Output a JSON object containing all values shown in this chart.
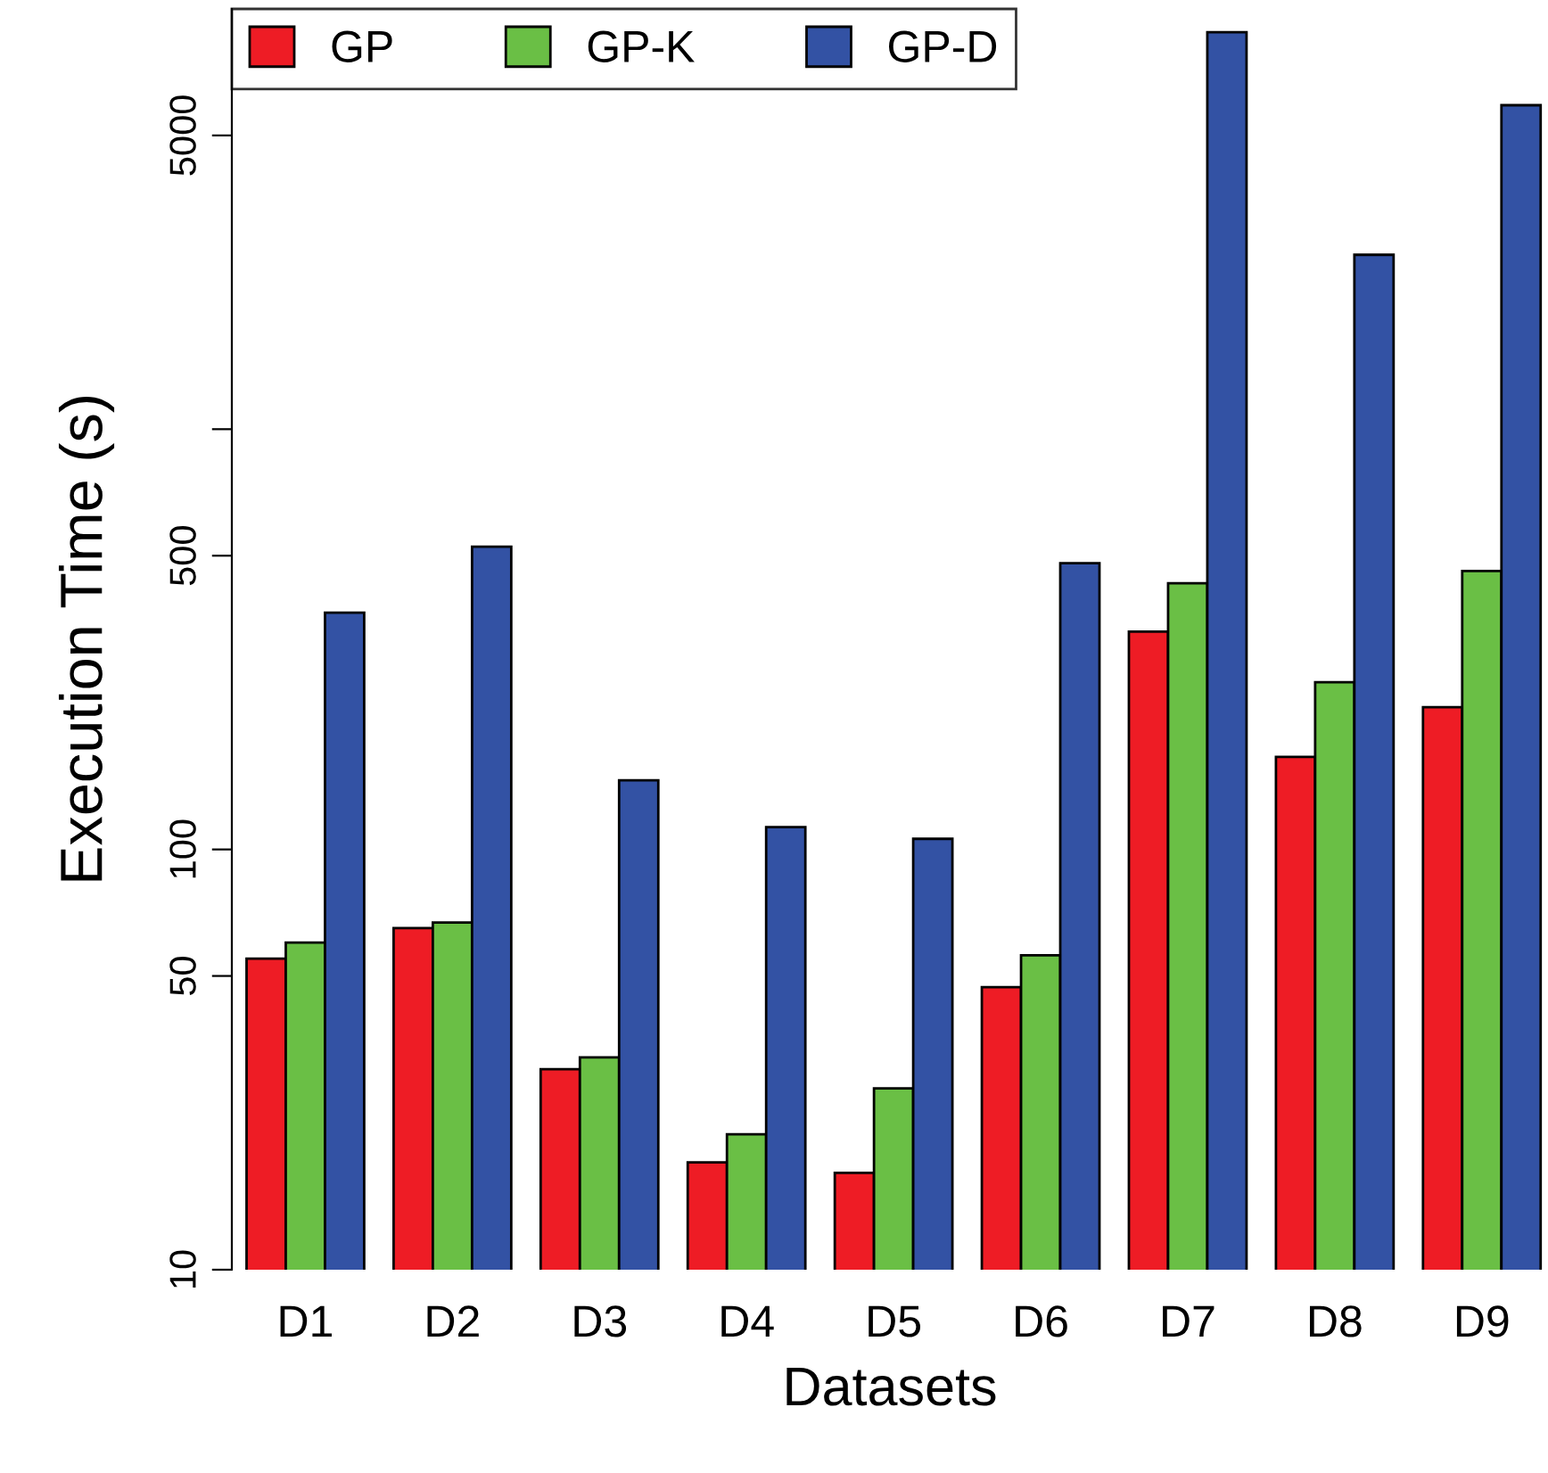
{
  "chart_data": {
    "type": "bar",
    "xlabel": "Datasets",
    "ylabel": "Execution Time (s)",
    "log": true,
    "ylim": [
      10,
      10000
    ],
    "yticks": [
      10,
      50,
      100,
      500,
      {
        "value": 1000,
        "label": null
      },
      5000
    ],
    "legend": "top left",
    "grid": false,
    "categories": [
      "D1",
      "D2",
      "D3",
      "D4",
      "D5",
      "D6",
      "D7",
      "D8",
      "D9"
    ],
    "series": [
      {
        "name": "GP",
        "color": "#ee1c25",
        "values": [
          55,
          65,
          30,
          18,
          17,
          47,
          330,
          166,
          218
        ]
      },
      {
        "name": "GP-K",
        "color": "#6abf45",
        "values": [
          60,
          67,
          32,
          21,
          27,
          56,
          430,
          250,
          460
        ]
      },
      {
        "name": "GP-D",
        "color": "#3352a4",
        "values": [
          366,
          525,
          146,
          113,
          106,
          480,
          8800,
          2600,
          5900
        ]
      }
    ]
  }
}
